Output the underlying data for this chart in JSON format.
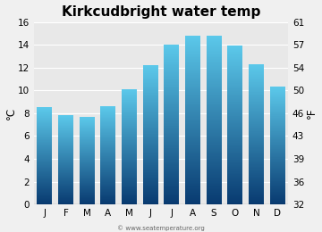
{
  "title": "Kirkcudbright water temp",
  "months": [
    "J",
    "F",
    "M",
    "A",
    "M",
    "J",
    "J",
    "A",
    "S",
    "O",
    "N",
    "D"
  ],
  "temps_c": [
    8.5,
    7.8,
    7.7,
    8.6,
    10.1,
    12.2,
    14.0,
    14.8,
    14.8,
    13.9,
    12.3,
    10.3
  ],
  "ylim_c": [
    0,
    16
  ],
  "yticks_c": [
    0,
    2,
    4,
    6,
    8,
    10,
    12,
    14,
    16
  ],
  "yticks_f": [
    32,
    36,
    39,
    43,
    46,
    50,
    54,
    57,
    61
  ],
  "ylabel_left": "°C",
  "ylabel_right": "°F",
  "bar_color_top": "#5bc8ea",
  "bar_color_bottom": "#083a70",
  "background_color": "#f0f0f0",
  "plot_bg_color": "#e8e8e8",
  "title_fontsize": 11,
  "axis_fontsize": 7.5,
  "watermark": "© www.seatemperature.org"
}
